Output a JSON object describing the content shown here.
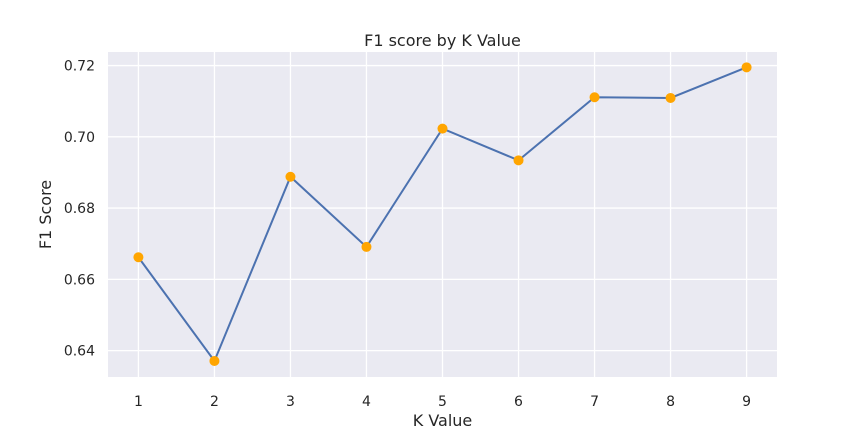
{
  "chart_data": {
    "type": "line",
    "title": "F1 score by K Value",
    "xlabel": "K Value",
    "ylabel": "F1 Score",
    "x": [
      1,
      2,
      3,
      4,
      5,
      6,
      7,
      8,
      9
    ],
    "series": [
      {
        "values": [
          0.6662,
          0.6371,
          0.6888,
          0.6691,
          0.7023,
          0.6934,
          0.7111,
          0.7109,
          0.7195
        ]
      }
    ],
    "xlim": [
      0.6,
      9.4
    ],
    "ylim": [
      0.6326,
      0.7238
    ],
    "xticks": [
      "1",
      "2",
      "3",
      "4",
      "5",
      "6",
      "7",
      "8",
      "9"
    ],
    "yticks": [
      "0.64",
      "0.66",
      "0.68",
      "0.70",
      "0.72"
    ],
    "ytick_values": [
      0.64,
      0.66,
      0.68,
      0.7,
      0.72
    ],
    "grid": true,
    "background": "#eaeaf2",
    "line_color": "#4c72b0",
    "marker_color": "#ffa500"
  }
}
